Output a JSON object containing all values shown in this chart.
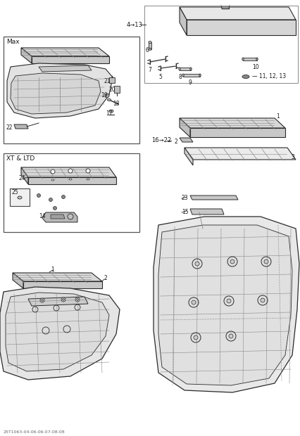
{
  "bg_color": "#ffffff",
  "line_color": "#2a2a2a",
  "light_line": "#888888",
  "box_color": "#444444",
  "label_color": "#1a1a1a",
  "footer_text": "25T1063-04-06-06-07-08-08",
  "labels": {
    "4_13": "4→13",
    "16_22": "16→22",
    "11_12_13": "— 11, 12, 13",
    "max_box": "Max",
    "xt_ltd_box": "XT & LTD"
  },
  "figsize": [
    4.27,
    6.2
  ],
  "dpi": 100
}
